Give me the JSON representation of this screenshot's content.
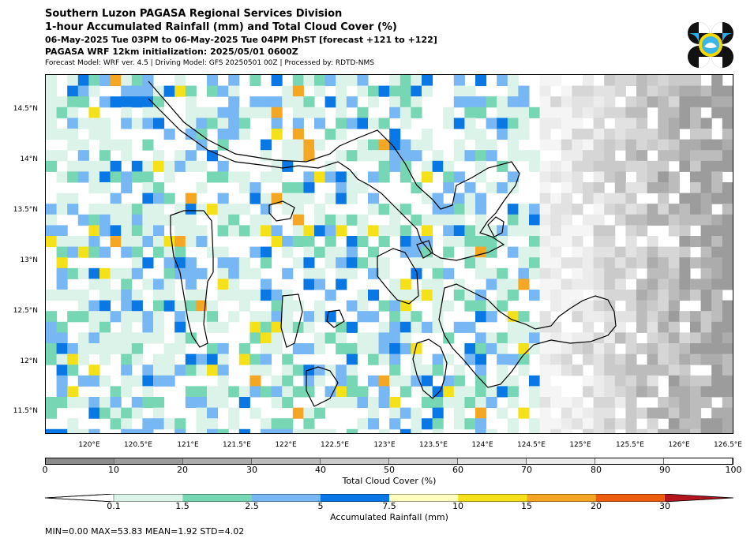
{
  "header": {
    "title1": "Southern Luzon PAGASA Regional Services Division",
    "title2": "1-hour Accumulated Rainfall (mm) and Total Cloud Cover (%)",
    "valid": "06-May-2025 Tue 03PM to 06-May-2025 Tue 04PM PhST [forecast +121 to +122]",
    "init": "PAGASA WRF 12km initialization: 2025/05/01 0600Z",
    "model": "Forecast Model: WRF ver. 4.5 | Driving Model: GFS 20250501 00Z | Processed by: RDTD-NMS"
  },
  "map": {
    "lon_min": 119.6,
    "lon_max": 126.6,
    "lat_min": 11.28,
    "lat_max": 14.85,
    "lat_ticks": [
      "14.5°N",
      "14°N",
      "13.5°N",
      "13°N",
      "12.5°N",
      "12°N",
      "11.5°N"
    ],
    "lat_values": [
      14.5,
      14.0,
      13.5,
      13.0,
      12.5,
      12.0,
      11.5
    ],
    "lon_ticks": [
      "120°E",
      "120.5°E",
      "121°E",
      "121.5°E",
      "122°E",
      "122.5°E",
      "123°E",
      "123.5°E",
      "124°E",
      "124.5°E",
      "125°E",
      "125.5°E",
      "126°E",
      "126.5°E"
    ],
    "lon_values": [
      120.0,
      120.5,
      121.0,
      121.5,
      122.0,
      122.5,
      123.0,
      123.5,
      124.0,
      124.5,
      125.0,
      125.5,
      126.0,
      126.5
    ]
  },
  "cloud_cover": {
    "label": "Total Cloud Cover (%)",
    "ticks": [
      "0",
      "10",
      "20",
      "30",
      "40",
      "50",
      "60",
      "70",
      "80",
      "90",
      "100"
    ],
    "colors": [
      "#8c8c8c",
      "#9c9c9c",
      "#acacac",
      "#bcbcbc",
      "#cacaca",
      "#d6d6d6",
      "#e2e2e2",
      "#ececec",
      "#f5f5f5",
      "#ffffff"
    ]
  },
  "rainfall": {
    "label": "Accumulated Rainfall (mm)",
    "ticks": [
      "0.1",
      "1.5",
      "2.5",
      "5",
      "7.5",
      "10",
      "15",
      "20",
      "30"
    ],
    "colors": [
      "#dcf3ea",
      "#77d6b3",
      "#77b7f4",
      "#0a78e4",
      "#ffffc0",
      "#f5e11a",
      "#f5a623",
      "#ec5e0e",
      "#b4141e"
    ]
  },
  "stats": "MIN=0.00   MAX=53.83   MEAN=1.92   STD=4.02"
}
